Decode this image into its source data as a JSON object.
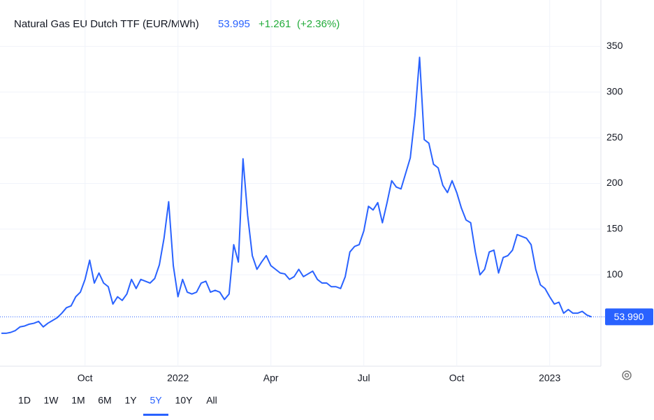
{
  "chart_data": {
    "type": "line",
    "title": "Natural Gas EU Dutch TTF (EUR/MWh)",
    "quote": {
      "price": "53.995",
      "change": "+1.261",
      "change_pct": "(+2.36%)"
    },
    "categories": [
      null,
      null,
      null,
      null,
      null,
      null,
      null,
      null,
      null,
      null,
      null,
      null,
      null,
      null,
      null,
      null,
      null,
      null,
      "Oct",
      null,
      null,
      null,
      null,
      null,
      null,
      null,
      null,
      null,
      null,
      null,
      null,
      null,
      null,
      null,
      null,
      null,
      null,
      null,
      "2022",
      null,
      null,
      null,
      null,
      null,
      null,
      null,
      null,
      null,
      null,
      null,
      null,
      null,
      null,
      null,
      null,
      null,
      null,
      null,
      "Apr",
      null,
      null,
      null,
      null,
      null,
      null,
      null,
      null,
      null,
      null,
      null,
      null,
      null,
      null,
      null,
      null,
      null,
      null,
      null,
      "Jul",
      null,
      null,
      null,
      null,
      null,
      null,
      null,
      null,
      null,
      null,
      null,
      null,
      null,
      null,
      null,
      null,
      null,
      null,
      null,
      "Oct",
      null,
      null,
      null,
      null,
      null,
      null,
      null,
      null,
      null,
      null,
      null,
      null,
      null,
      null,
      null,
      null,
      null,
      null,
      null,
      "2023",
      null,
      null,
      null,
      null,
      null,
      null,
      null,
      null,
      null
    ],
    "series": [
      {
        "name": "Natural Gas EU Dutch TTF",
        "color": "#2962ff",
        "values": [
          36,
          36,
          37,
          39,
          43,
          44,
          46,
          47,
          49,
          43,
          47,
          50,
          53,
          58,
          64,
          66,
          76,
          81,
          95,
          116,
          91,
          102,
          91,
          87,
          68,
          76,
          72,
          79,
          95,
          85,
          95,
          93,
          91,
          96,
          111,
          140,
          180,
          110,
          76,
          95,
          81,
          79,
          81,
          91,
          93,
          81,
          83,
          81,
          73,
          79,
          133,
          114,
          227,
          165,
          121,
          106,
          114,
          121,
          110,
          106,
          102,
          101,
          95,
          98,
          106,
          98,
          101,
          104,
          95,
          91,
          91,
          87,
          87,
          85,
          98,
          125,
          131,
          133,
          148,
          175,
          171,
          179,
          157,
          179,
          203,
          196,
          194,
          211,
          228,
          274,
          338,
          248,
          244,
          221,
          217,
          198,
          190,
          203,
          190,
          173,
          160,
          157,
          125,
          100,
          106,
          125,
          127,
          102,
          119,
          121,
          127,
          144,
          142,
          140,
          133,
          106,
          89,
          85,
          76,
          68,
          70,
          58,
          62,
          58,
          58,
          60,
          56,
          53.99
        ]
      }
    ],
    "last_price": {
      "value": 53.99,
      "label": "53.990"
    },
    "ylim": [
      0,
      400
    ],
    "yticks": [
      100,
      150,
      200,
      250,
      300,
      350
    ],
    "grid": true,
    "range_selector": {
      "options": [
        "1D",
        "1W",
        "1M",
        "6M",
        "1Y",
        "5Y",
        "10Y",
        "All"
      ],
      "selected": 5
    }
  }
}
